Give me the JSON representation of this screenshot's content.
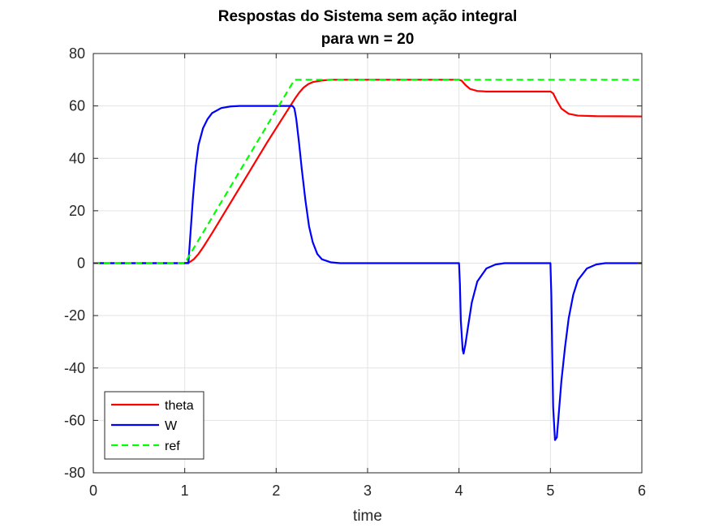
{
  "chart_data": {
    "type": "line",
    "title": [
      "Respostas do Sistema sem ação integral",
      "para wn = 20"
    ],
    "xlabel": "time",
    "ylabel": "",
    "xlim": [
      0,
      6
    ],
    "ylim": [
      -80,
      80
    ],
    "xticks": [
      0,
      1,
      2,
      3,
      4,
      5,
      6
    ],
    "yticks": [
      -80,
      -60,
      -40,
      -20,
      0,
      20,
      40,
      60,
      80
    ],
    "grid": true,
    "legend_position": "bottom-left",
    "series": [
      {
        "name": "theta",
        "color": "#ff0000",
        "style": "solid",
        "points": [
          [
            0,
            0
          ],
          [
            1.0,
            0
          ],
          [
            1.05,
            0.3
          ],
          [
            1.1,
            1.5
          ],
          [
            1.15,
            3.5
          ],
          [
            1.2,
            6.0
          ],
          [
            1.3,
            11.5
          ],
          [
            1.5,
            23.0
          ],
          [
            1.7,
            34.5
          ],
          [
            1.9,
            46.0
          ],
          [
            2.0,
            51.5
          ],
          [
            2.1,
            57.0
          ],
          [
            2.2,
            62.5
          ],
          [
            2.25,
            65.0
          ],
          [
            2.3,
            67.0
          ],
          [
            2.35,
            68.3
          ],
          [
            2.4,
            69.1
          ],
          [
            2.5,
            69.7
          ],
          [
            2.6,
            70.0
          ],
          [
            4.0,
            70.0
          ],
          [
            4.03,
            69.6
          ],
          [
            4.07,
            68.0
          ],
          [
            4.12,
            66.5
          ],
          [
            4.2,
            65.7
          ],
          [
            4.3,
            65.5
          ],
          [
            5.0,
            65.5
          ],
          [
            5.03,
            64.8
          ],
          [
            5.07,
            62.0
          ],
          [
            5.12,
            59.0
          ],
          [
            5.2,
            57.0
          ],
          [
            5.3,
            56.3
          ],
          [
            5.5,
            56.1
          ],
          [
            6.0,
            56.0
          ]
        ]
      },
      {
        "name": "W",
        "color": "#0000ff",
        "style": "solid",
        "points": [
          [
            0,
            0
          ],
          [
            1.04,
            0
          ],
          [
            1.06,
            10.0
          ],
          [
            1.09,
            25.0
          ],
          [
            1.12,
            37.0
          ],
          [
            1.15,
            45.0
          ],
          [
            1.2,
            51.5
          ],
          [
            1.25,
            55.0
          ],
          [
            1.3,
            57.3
          ],
          [
            1.4,
            59.2
          ],
          [
            1.5,
            59.8
          ],
          [
            1.6,
            60.0
          ],
          [
            2.18,
            60.0
          ],
          [
            2.2,
            59.0
          ],
          [
            2.22,
            55.0
          ],
          [
            2.25,
            46.0
          ],
          [
            2.28,
            36.0
          ],
          [
            2.32,
            24.0
          ],
          [
            2.36,
            14.0
          ],
          [
            2.4,
            8.0
          ],
          [
            2.45,
            3.5
          ],
          [
            2.5,
            1.5
          ],
          [
            2.6,
            0.3
          ],
          [
            2.7,
            0
          ],
          [
            4.0,
            0
          ],
          [
            4.01,
            -8.0
          ],
          [
            4.02,
            -22.0
          ],
          [
            4.04,
            -33.0
          ],
          [
            4.05,
            -34.5
          ],
          [
            4.07,
            -31.0
          ],
          [
            4.1,
            -24.0
          ],
          [
            4.14,
            -15.0
          ],
          [
            4.2,
            -7.0
          ],
          [
            4.3,
            -2.0
          ],
          [
            4.4,
            -0.5
          ],
          [
            4.5,
            0
          ],
          [
            5.0,
            0
          ],
          [
            5.01,
            -12.0
          ],
          [
            5.02,
            -35.0
          ],
          [
            5.03,
            -55.0
          ],
          [
            5.05,
            -67.5
          ],
          [
            5.07,
            -66.5
          ],
          [
            5.09,
            -58.0
          ],
          [
            5.12,
            -45.0
          ],
          [
            5.16,
            -32.0
          ],
          [
            5.2,
            -21.0
          ],
          [
            5.25,
            -12.0
          ],
          [
            5.3,
            -6.5
          ],
          [
            5.4,
            -2.0
          ],
          [
            5.5,
            -0.5
          ],
          [
            5.6,
            0
          ],
          [
            6.0,
            0
          ]
        ]
      },
      {
        "name": "ref",
        "color": "#00ff00",
        "style": "dashed",
        "points": [
          [
            0,
            0
          ],
          [
            1.0,
            0
          ],
          [
            2.2,
            70
          ],
          [
            6.0,
            70
          ]
        ]
      }
    ]
  }
}
